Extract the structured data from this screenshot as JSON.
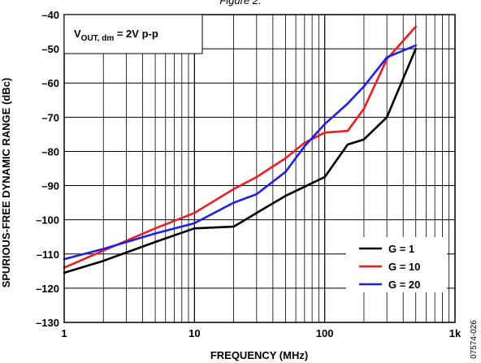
{
  "figure_caption": "Figure 2.",
  "figure_id": "07574-026",
  "chart_data": {
    "type": "line",
    "xlabel": "FREQUENCY (MHz)",
    "ylabel": "SPURIOUS-FREE DYNAMIC RANGE (dBc)",
    "x_scale": "log",
    "xlim": [
      1,
      1000
    ],
    "ylim": [
      -130,
      -40
    ],
    "x_ticks": [
      1,
      10,
      100,
      1000
    ],
    "x_tick_labels": [
      "1",
      "10",
      "100",
      "1k"
    ],
    "y_ticks": [
      -130,
      -120,
      -110,
      -100,
      -90,
      -80,
      -70,
      -60,
      -50,
      -40
    ],
    "y_tick_labels": [
      "–130",
      "–120",
      "–110",
      "–100",
      "–90",
      "–80",
      "–70",
      "–60",
      "–50",
      "–40"
    ],
    "grid": true,
    "annotation": {
      "main": "V",
      "sub1": "OUT, dm",
      "rest": " = 2V p-p"
    },
    "legend_placement": "bottom-right",
    "series": [
      {
        "name": "G = 1",
        "color": "#000000",
        "x": [
          1,
          2,
          5,
          10,
          20,
          30,
          50,
          100,
          150,
          200,
          300,
          500
        ],
        "y": [
          -115.5,
          -112,
          -106.5,
          -102.5,
          -102,
          -98,
          -93,
          -87.5,
          -78,
          -76.5,
          -70,
          -50
        ]
      },
      {
        "name": "G = 10",
        "color": "#ee1c24",
        "x": [
          1,
          2,
          5,
          10,
          20,
          30,
          50,
          70,
          100,
          150,
          200,
          300,
          500
        ],
        "y": [
          -114,
          -109,
          -102.5,
          -98,
          -91,
          -87.5,
          -82,
          -77.5,
          -74.5,
          -74,
          -67.5,
          -53,
          -43.5
        ]
      },
      {
        "name": "G = 20",
        "color": "#1f1fe6",
        "x": [
          1,
          2,
          5,
          10,
          20,
          30,
          50,
          70,
          100,
          150,
          200,
          300,
          500
        ],
        "y": [
          -111.5,
          -108.5,
          -104,
          -101,
          -95,
          -92.5,
          -86,
          -78.5,
          -72,
          -66,
          -61,
          -52.5,
          -49
        ]
      }
    ]
  }
}
